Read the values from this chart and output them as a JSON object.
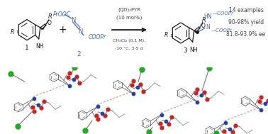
{
  "background_color": "#ffffff",
  "fig_width": 3.78,
  "fig_height": 1.89,
  "dpi": 100,
  "colors": {
    "black": "#1a1a1a",
    "blue": "#4169bb",
    "gray": "#444444",
    "red_atom": "#cc2222",
    "blue_atom": "#2244aa",
    "green_atom": "#22aa22",
    "bond_gray": "#555555",
    "hbond_pink": "#cc9999"
  },
  "conditions": {
    "line1": "(QD)₂PYR",
    "line2": "(10 mol%)",
    "line3": "CH₂Cl₂ (0.1 M),",
    "line4": "-10 °C, 3-5 d"
  },
  "results": {
    "line1": "14 examples",
    "line2": "90-98% yield",
    "line3": "81.8-93.9% ee"
  }
}
